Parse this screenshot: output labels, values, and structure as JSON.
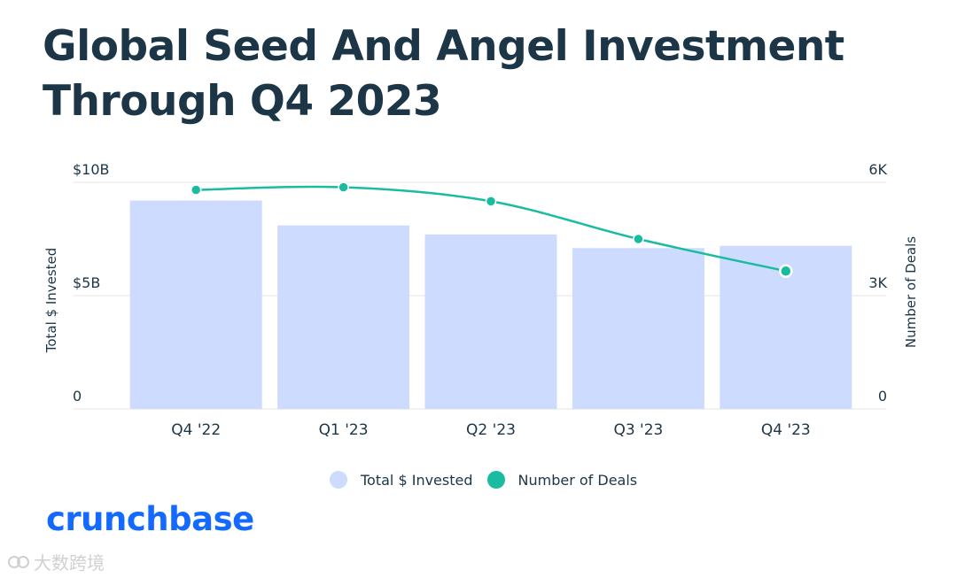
{
  "title_lines": [
    "Global Seed And Angel Investment",
    "Through Q4 2023"
  ],
  "brand": "crunchbase",
  "watermark": "大数跨境",
  "colors": {
    "bar": "#cddcfe",
    "line": "#19bc9f",
    "title": "#1c3647",
    "grid": "#e6e6e6",
    "brand": "#146aff"
  },
  "chart_data": {
    "type": "bar",
    "categories": [
      "Q4 '22",
      "Q1 '23",
      "Q2 '23",
      "Q3 '23",
      "Q4 '23"
    ],
    "series": [
      {
        "name": "Total $ Invested",
        "type": "bar",
        "axis": "left",
        "values": [
          9.2,
          8.1,
          7.7,
          7.1,
          7.2
        ]
      },
      {
        "name": "Number of Deals",
        "type": "line",
        "axis": "right",
        "values": [
          5.8,
          5.87,
          5.5,
          4.5,
          3.65
        ]
      }
    ],
    "y_left": {
      "label": "Total $ Invested",
      "min": 0,
      "max": 10,
      "ticks": [
        0,
        5,
        10
      ],
      "tick_labels": [
        "0",
        "$5B",
        "$10B"
      ]
    },
    "y_right": {
      "label": "Number of Deals",
      "min": 0,
      "max": 6,
      "ticks": [
        0,
        3,
        6
      ],
      "tick_labels": [
        "0",
        "3K",
        "6K"
      ]
    },
    "grid": true,
    "legend_position": "bottom"
  }
}
